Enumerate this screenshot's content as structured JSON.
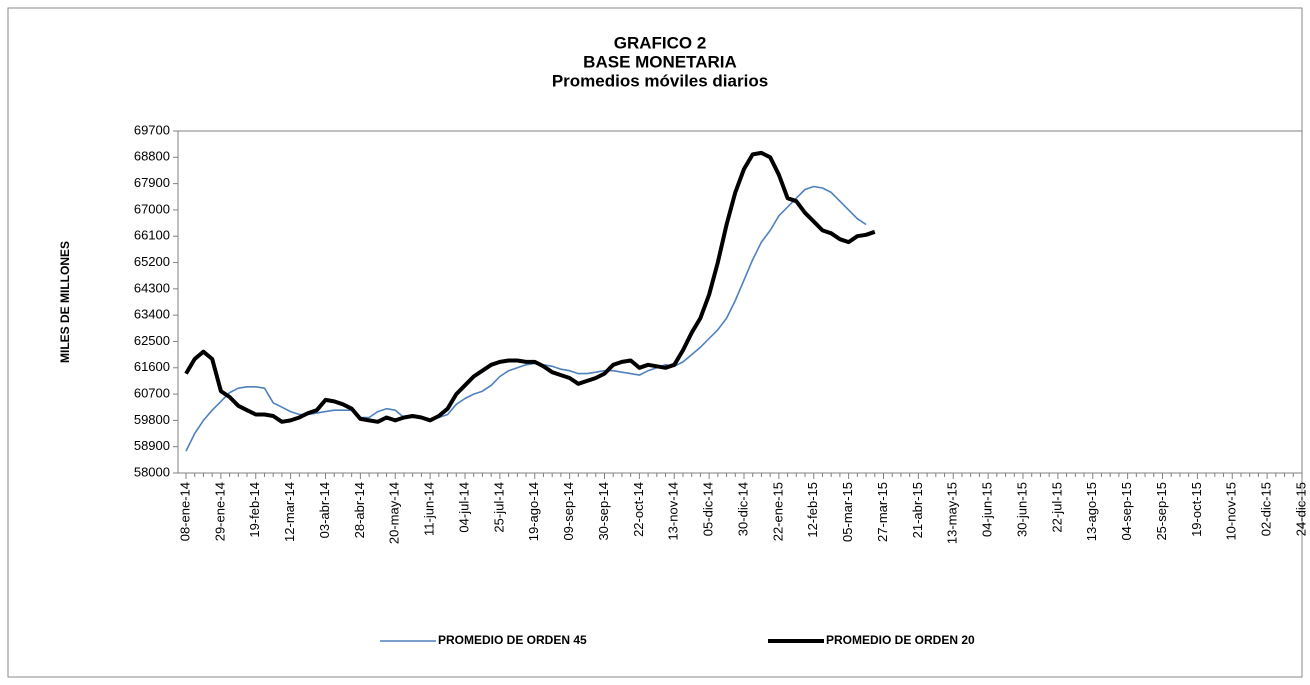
{
  "chart_data": {
    "type": "line",
    "title_lines": [
      "GRAFICO 2",
      "BASE MONETARIA",
      "Promedios móviles diarios"
    ],
    "y_label": "MILES DE MILLONES",
    "categories": [
      "08-ene-14",
      null,
      null,
      null,
      "29-ene-14",
      null,
      null,
      null,
      "19-feb-14",
      null,
      null,
      null,
      "12-mar-14",
      null,
      null,
      null,
      "03-abr-14",
      null,
      null,
      null,
      "28-abr-14",
      null,
      null,
      null,
      "20-may-14",
      null,
      null,
      null,
      "11-jun-14",
      null,
      null,
      null,
      "04-jul-14",
      null,
      null,
      null,
      "25-jul-14",
      null,
      null,
      null,
      "19-ago-14",
      null,
      null,
      null,
      "09-sep-14",
      null,
      null,
      null,
      "30-sep-14",
      null,
      null,
      null,
      "22-oct-14",
      null,
      null,
      null,
      "13-nov-14",
      null,
      null,
      null,
      "05-dic-14",
      null,
      null,
      null,
      "30-dic-14",
      null,
      null,
      null,
      "22-ene-15",
      null,
      null,
      null,
      "12-feb-15",
      null,
      null,
      null,
      "05-mar-15",
      null,
      null,
      null,
      "27-mar-15",
      null,
      null,
      null,
      "21-abr-15",
      null,
      null,
      null,
      "13-may-15",
      null,
      null,
      null,
      "04-jun-15",
      null,
      null,
      null,
      "30-jun-15",
      null,
      null,
      null,
      "22-jul-15",
      null,
      null,
      null,
      "13-ago-15",
      null,
      null,
      null,
      "04-sep-15",
      null,
      null,
      null,
      "25-sep-15",
      null,
      null,
      null,
      "19-oct-15",
      null,
      null,
      null,
      "10-nov-15",
      null,
      null,
      null,
      "02-dic-15",
      null,
      null,
      null,
      "24-dic-15"
    ],
    "series": [
      {
        "name": "PROMEDIO DE ORDEN 45",
        "color": "#4f81bd",
        "values": [
          58750,
          59350,
          59800,
          60150,
          60450,
          60750,
          60900,
          60950,
          60950,
          60900,
          60400,
          60250,
          60100,
          60000,
          60000,
          60050,
          60100,
          60150,
          60150,
          60150,
          59900,
          59900,
          60100,
          60200,
          60150,
          59900,
          59900,
          59900,
          59850,
          59900,
          60000,
          60350,
          60550,
          60700,
          60800,
          61000,
          61300,
          61500,
          61600,
          61700,
          61750,
          61700,
          61650,
          61550,
          61500,
          61400,
          61400,
          61450,
          61500,
          61500,
          61450,
          61400,
          61350,
          61500,
          61600,
          61700,
          61650,
          61800,
          62050,
          62300,
          62600,
          62900,
          63300,
          63900,
          64600,
          65300,
          65900,
          66300,
          66800,
          67100,
          67400,
          67700,
          67800,
          67750,
          67600,
          67300,
          67000,
          66700,
          66500,
          null,
          null,
          null,
          null,
          null,
          null,
          null,
          null,
          null,
          null,
          null,
          null,
          null,
          null,
          null,
          null,
          null,
          null,
          null,
          null,
          null,
          null,
          null,
          null,
          null,
          null,
          null,
          null,
          null,
          null,
          null,
          null,
          null,
          null,
          null,
          null,
          null,
          null,
          null,
          null,
          null,
          null,
          null,
          null,
          null,
          null,
          null,
          null,
          null,
          null
        ]
      },
      {
        "name": "PROMEDIO DE ORDEN 20",
        "color": "#000000",
        "values": [
          61400,
          61900,
          62150,
          61900,
          60800,
          60600,
          60300,
          60150,
          60000,
          60000,
          59950,
          59750,
          59800,
          59900,
          60050,
          60150,
          60500,
          60450,
          60350,
          60200,
          59850,
          59800,
          59750,
          59900,
          59800,
          59900,
          59950,
          59900,
          59800,
          59950,
          60200,
          60700,
          61000,
          61300,
          61500,
          61700,
          61800,
          61850,
          61850,
          61800,
          61800,
          61650,
          61450,
          61350,
          61250,
          61050,
          61150,
          61250,
          61400,
          61700,
          61800,
          61850,
          61600,
          61700,
          61650,
          61600,
          61700,
          62200,
          62800,
          63300,
          64100,
          65200,
          66500,
          67600,
          68400,
          68900,
          68950,
          68800,
          68200,
          67400,
          67300,
          66900,
          66600,
          66300,
          66200,
          66000,
          65900,
          66100,
          66150,
          66250,
          null,
          null,
          null,
          null,
          null,
          null,
          null,
          null,
          null,
          null,
          null,
          null,
          null,
          null,
          null,
          null,
          null,
          null,
          null,
          null,
          null,
          null,
          null,
          null,
          null,
          null,
          null,
          null,
          null,
          null,
          null,
          null,
          null,
          null,
          null,
          null,
          null,
          null,
          null,
          null,
          null,
          null,
          null,
          null,
          null,
          null,
          null,
          null,
          null
        ]
      }
    ],
    "ylim": [
      58000,
      69700
    ],
    "yticks": [
      58000,
      58900,
      59800,
      60700,
      61600,
      62500,
      63400,
      64300,
      65200,
      66100,
      67000,
      67900,
      68800,
      69700
    ],
    "legend": "bottom"
  }
}
